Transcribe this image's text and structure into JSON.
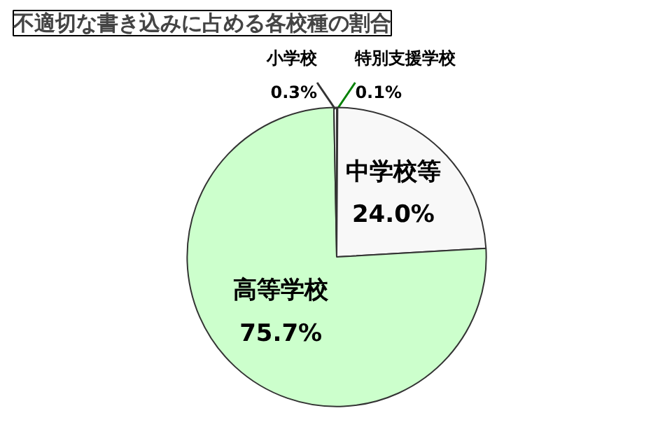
{
  "chart_data": {
    "type": "pie",
    "title": "不適切な書き込みに占める各校種の割合",
    "categories": [
      "特別支援学校",
      "中学校等",
      "高等学校",
      "小学校"
    ],
    "values": [
      0.1,
      24.0,
      75.7,
      0.3
    ],
    "colors": [
      "#008000",
      "#f8f8f8",
      "#ccffcc",
      "#ffffff"
    ],
    "value_labels": [
      "0.1%",
      "24.0%",
      "75.7%",
      "0.3%"
    ]
  }
}
